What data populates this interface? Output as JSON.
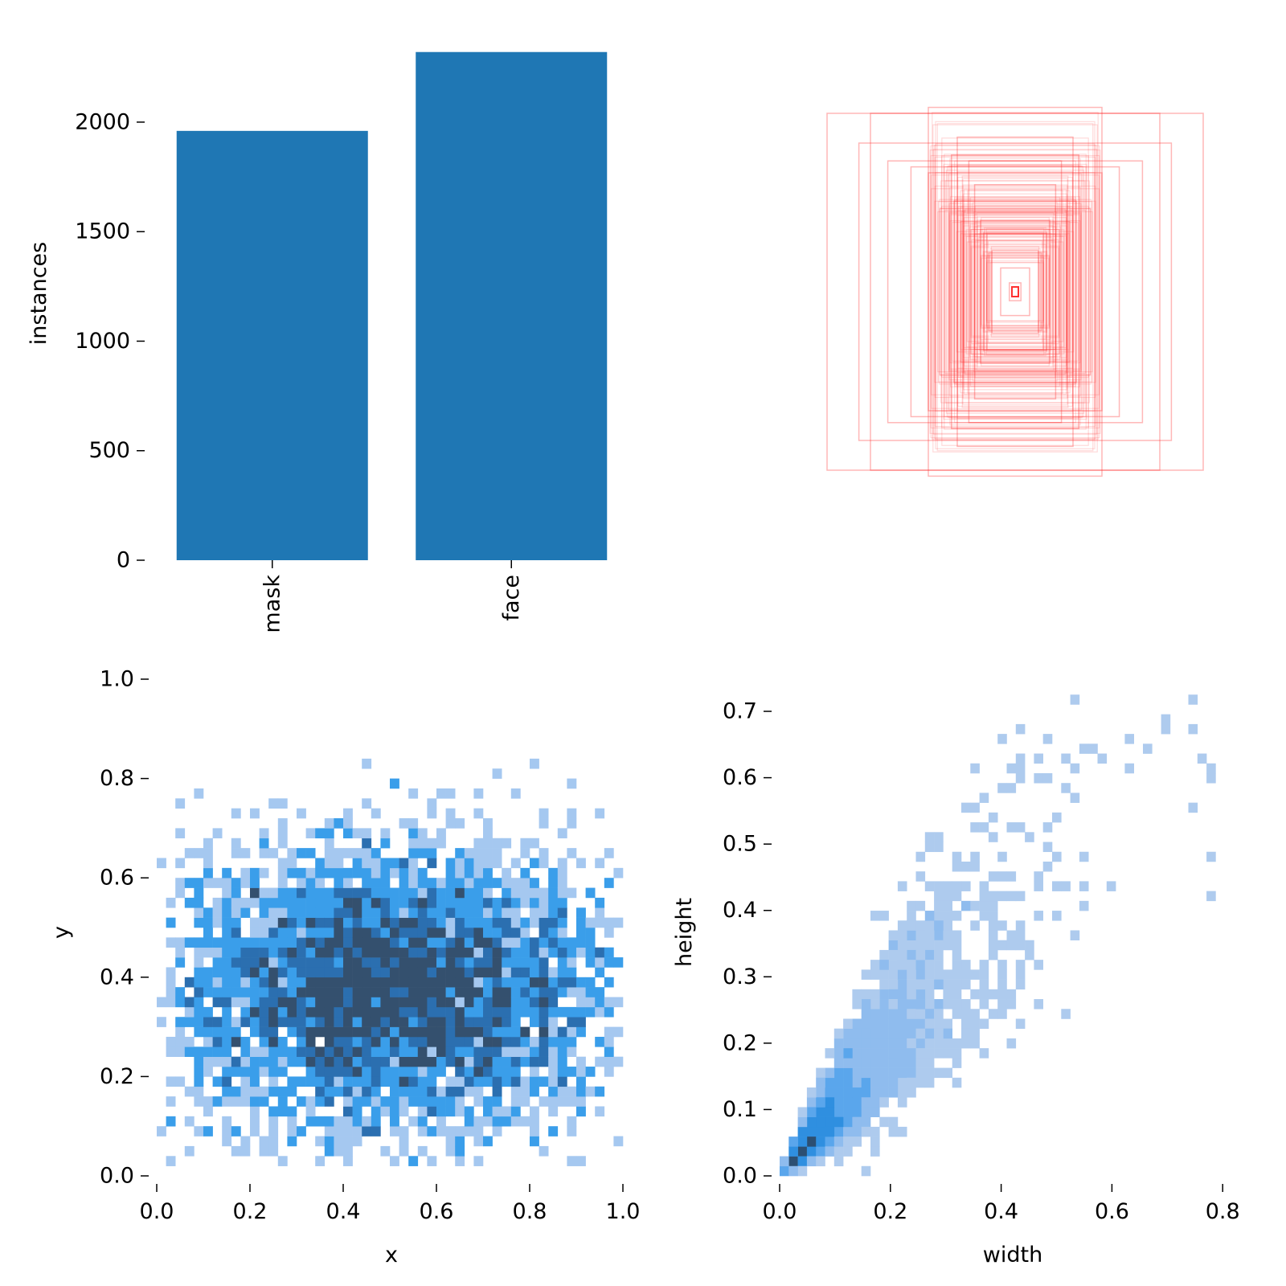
{
  "chart_data": [
    {
      "type": "bar",
      "categories": [
        "mask",
        "face"
      ],
      "values": [
        1960,
        2320
      ],
      "ylabel": "instances",
      "ylim": [
        0,
        2330
      ],
      "yticks": [
        0,
        500,
        1000,
        1500,
        2000
      ],
      "ytick_labels": [
        "0",
        "500",
        "1000",
        "1500",
        "2000"
      ],
      "bar_color": "#1f77b4"
    },
    {
      "type": "other",
      "description_kind": "overlaid bounding boxes",
      "stroke_color": "#ff3030",
      "boxes": [
        {
          "w": 0.65,
          "h": 0.6
        },
        {
          "w": 0.5,
          "h": 0.6
        },
        {
          "w": 0.3,
          "h": 0.62
        },
        {
          "w": 0.54,
          "h": 0.5
        },
        {
          "w": 0.44,
          "h": 0.44
        },
        {
          "w": 0.36,
          "h": 0.42
        },
        {
          "w": 0.3,
          "h": 0.4
        },
        {
          "w": 0.22,
          "h": 0.46
        },
        {
          "w": 0.2,
          "h": 0.52
        },
        {
          "w": 0.16,
          "h": 0.44
        },
        {
          "w": 0.14,
          "h": 0.36
        },
        {
          "w": 0.26,
          "h": 0.28
        },
        {
          "w": 0.12,
          "h": 0.24
        },
        {
          "w": 0.08,
          "h": 0.14
        },
        {
          "w": 0.05,
          "h": 0.08
        },
        {
          "w": 0.02,
          "h": 0.03
        }
      ]
    },
    {
      "type": "heatmap",
      "xlabel": "x",
      "ylabel": "y",
      "xlim": [
        0,
        1
      ],
      "ylim": [
        0,
        1
      ],
      "xticks": [
        "0.0",
        "0.2",
        "0.4",
        "0.6",
        "0.8",
        "1.0"
      ],
      "yticks": [
        "0.0",
        "0.2",
        "0.4",
        "0.6",
        "0.8",
        "1.0"
      ],
      "bins": 50,
      "center": [
        0.5,
        0.37
      ],
      "spread": [
        0.24,
        0.14
      ],
      "colors": [
        "#a5c8f0",
        "#3a9eea",
        "#2b6fb0",
        "#34506e"
      ]
    },
    {
      "type": "heatmap",
      "xlabel": "width",
      "ylabel": "height",
      "xlim": [
        0,
        0.82
      ],
      "ylim": [
        0,
        0.74
      ],
      "xticks": [
        "0.0",
        "0.2",
        "0.4",
        "0.6",
        "0.8"
      ],
      "yticks": [
        "0.0",
        "0.1",
        "0.2",
        "0.3",
        "0.4",
        "0.5",
        "0.6",
        "0.7"
      ],
      "bins": 50,
      "colors": [
        "#aecbee",
        "#8fbcee",
        "#5aa6ec",
        "#2f8fe0",
        "#2c4f72"
      ]
    }
  ]
}
